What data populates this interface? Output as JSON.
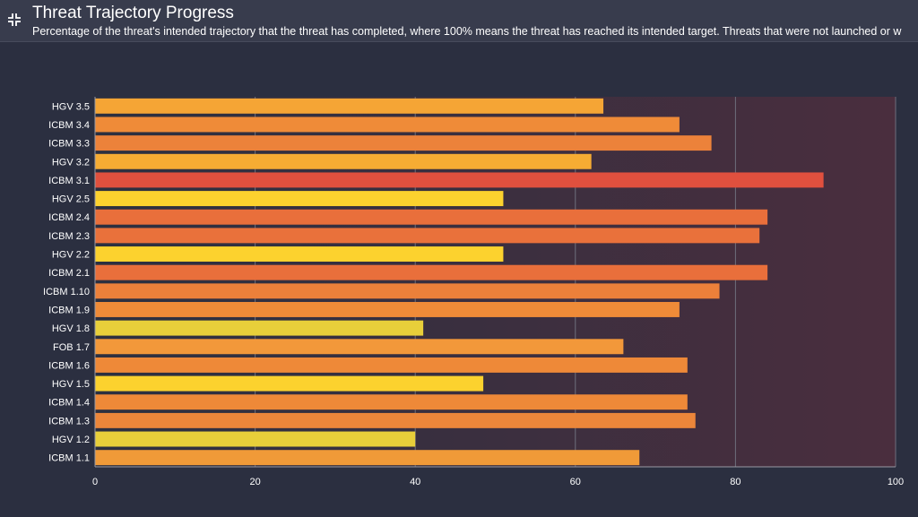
{
  "panel": {
    "title": "Threat Trajectory Progress",
    "subtitle": "Percentage of the threat's intended trajectory that the threat has completed, where 100% means the threat has reached its intended target. Threats that were not launched or w",
    "collapse_icon": "collapse-icon"
  },
  "chart_data": {
    "type": "bar",
    "orientation": "horizontal",
    "categories": [
      "HGV 3.5",
      "ICBM 3.4",
      "ICBM 3.3",
      "HGV 3.2",
      "ICBM 3.1",
      "HGV 2.5",
      "ICBM 2.4",
      "ICBM 2.3",
      "HGV 2.2",
      "ICBM 2.1",
      "ICBM 1.10",
      "ICBM 1.9",
      "HGV 1.8",
      "FOB 1.7",
      "ICBM 1.6",
      "HGV 1.5",
      "ICBM 1.4",
      "ICBM 1.3",
      "HGV 1.2",
      "ICBM 1.1"
    ],
    "values": [
      63.5,
      73,
      77,
      62,
      91,
      51,
      84,
      83,
      51,
      84,
      78,
      73,
      41,
      66,
      74,
      48.5,
      74,
      75,
      40,
      68
    ],
    "colors": [
      "#f5a535",
      "#ef8b38",
      "#ec823a",
      "#f6ac33",
      "#e0503e",
      "#fcd22e",
      "#e96f3b",
      "#e9713b",
      "#fcd22e",
      "#e96f3b",
      "#ec803a",
      "#ef8b38",
      "#e8cf3a",
      "#f2983a",
      "#ee8938",
      "#fcd22e",
      "#ee8938",
      "#ec863a",
      "#e8cf3a",
      "#f09a38"
    ],
    "xlim": [
      0,
      100
    ],
    "xticks": [
      0,
      20,
      40,
      60,
      80,
      100
    ],
    "xlabel": "",
    "ylabel": "",
    "grid": true,
    "background_gradient": [
      "#2c3040",
      "#4a2e3e"
    ]
  }
}
